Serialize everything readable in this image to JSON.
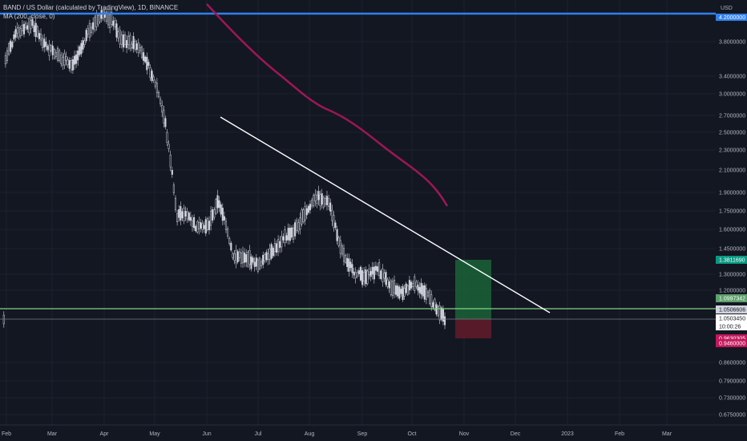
{
  "legend": {
    "symbol_line": "BAND / US Dollar (calculated by TradingView), 1D, BINANCE",
    "ma_line": "MA (200, close, 0)"
  },
  "price_axis": {
    "currency": "USD",
    "top_label": "4.2000000",
    "ticks": [
      "3.8000000",
      "3.4000000",
      "3.0000000",
      "2.7000000",
      "2.5000000",
      "2.3000000",
      "2.1000000",
      "1.9000000",
      "1.7500000",
      "1.6000000",
      "1.4500000",
      "1.3000000",
      "1.2000000",
      "0.8600000",
      "0.7900000",
      "0.7300000",
      "0.6750000"
    ],
    "tags": [
      {
        "label": "1.3811690",
        "bg": "#089981",
        "fg": "#ffffff"
      },
      {
        "label": "1.0997342",
        "bg": "#5d9f6b",
        "fg": "#ffffff"
      },
      {
        "label": "1.0506606",
        "bg": "#d1d4dc",
        "fg": "#131722"
      },
      {
        "label": "1.0503450",
        "bg": "#ffffff",
        "fg": "#131722"
      },
      {
        "label": "10:00:26",
        "bg": "#ffffff",
        "fg": "#131722"
      },
      {
        "label": "0.9630305",
        "bg": "#c2185b",
        "fg": "#ffffff"
      },
      {
        "label": "0.9460000",
        "bg": "#c2185b",
        "fg": "#ffffff"
      }
    ]
  },
  "time_axis": [
    "Feb",
    "Mar",
    "Apr",
    "May",
    "Jun",
    "Jul",
    "Aug",
    "Sep",
    "Oct",
    "Nov",
    "Dec",
    "2023",
    "Feb",
    "Mar"
  ],
  "colors": {
    "background": "#131722",
    "up": "#d1d4dc",
    "down": "#d1d4dc",
    "ma": "#9c1756",
    "trendline": "#ffffff",
    "resistance": "#2f80ed",
    "support": "#7fd47f",
    "target_zone": "#1b5e36",
    "stop_zone": "#5e1b2a"
  }
}
